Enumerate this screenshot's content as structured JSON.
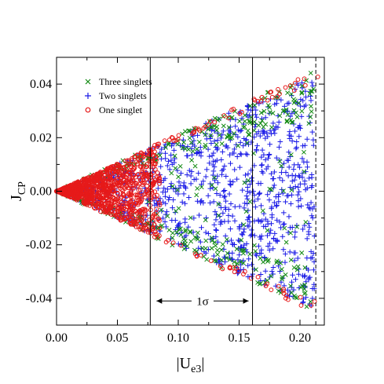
{
  "chart_data": {
    "type": "scatter",
    "title": "",
    "xlabel_main": "|U",
    "xlabel_sub": "e3",
    "xlabel_tail": "|",
    "ylabel_main": "J",
    "ylabel_sub": "CP",
    "xlim": [
      0.0,
      0.22
    ],
    "ylim": [
      -0.05,
      0.05
    ],
    "x_ticks": [
      0.0,
      0.05,
      0.1,
      0.15,
      0.2
    ],
    "x_tick_labels": [
      "0.00",
      "0.05",
      "0.10",
      "0.15",
      "0.20"
    ],
    "y_ticks": [
      -0.04,
      -0.02,
      0.0,
      0.02,
      0.04
    ],
    "y_tick_labels": [
      "-0.04",
      "-0.02",
      "0.00",
      "0.02",
      "0.04"
    ],
    "grid": false,
    "legend_position": "top-left",
    "series": [
      {
        "name": "Three singlets",
        "marker": "x-icon",
        "color": "#138a13"
      },
      {
        "name": "Two singlets",
        "marker": "plus-icon",
        "color": "#1a1ae6"
      },
      {
        "name": "One singlet",
        "marker": "circle-icon",
        "color": "#e61a1a"
      }
    ],
    "vertical_lines": [
      {
        "x": 0.077,
        "style": "solid"
      },
      {
        "x": 0.161,
        "style": "solid"
      },
      {
        "x": 0.213,
        "style": "dashed"
      }
    ],
    "annotation": {
      "text": "1σ",
      "x_from": 0.077,
      "x_to": 0.161,
      "y": -0.041
    },
    "envelope_slope": 0.213
  }
}
